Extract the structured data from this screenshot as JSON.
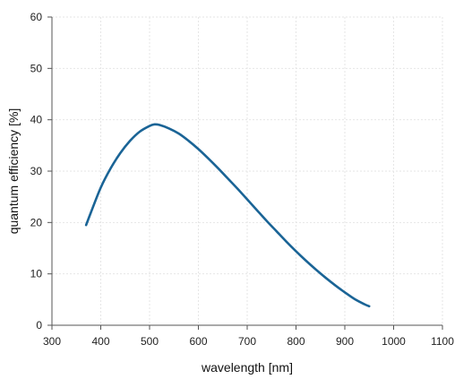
{
  "chart_data": {
    "type": "line",
    "title": "",
    "xlabel": "wavelength [nm]",
    "ylabel": "quantum efficiency [%]",
    "xlim": [
      300,
      1100
    ],
    "ylim": [
      0,
      60
    ],
    "x_ticks": [
      300,
      400,
      500,
      600,
      700,
      800,
      900,
      1000,
      1100
    ],
    "y_ticks": [
      0,
      10,
      20,
      30,
      40,
      50,
      60
    ],
    "grid": true,
    "legend": "none",
    "line_color": "#1a6496",
    "grid_color": "#e6e6e6",
    "axis_color": "#555555",
    "series": [
      {
        "x": [
          370,
          380,
          400,
          420,
          440,
          460,
          480,
          500,
          510,
          520,
          540,
          560,
          580,
          600,
          620,
          640,
          660,
          680,
          700,
          720,
          740,
          760,
          780,
          800,
          820,
          840,
          860,
          880,
          900,
          920,
          940,
          950
        ],
        "values": [
          19.5,
          22.0,
          26.8,
          30.5,
          33.5,
          35.9,
          37.7,
          38.8,
          39.1,
          39.0,
          38.3,
          37.3,
          35.9,
          34.3,
          32.5,
          30.6,
          28.6,
          26.6,
          24.5,
          22.4,
          20.3,
          18.3,
          16.3,
          14.4,
          12.6,
          10.9,
          9.3,
          7.8,
          6.4,
          5.1,
          4.1,
          3.7
        ]
      }
    ]
  }
}
